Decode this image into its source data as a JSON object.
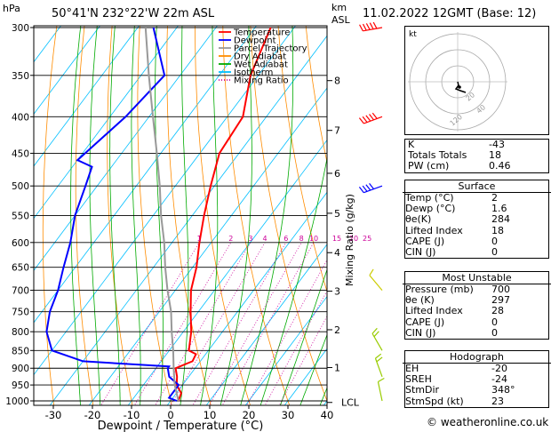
{
  "header": {
    "pressure_unit": "hPa",
    "location": "50°41'N  232°22'W  22m  ASL",
    "height_unit_km": "km",
    "height_unit_asl": "ASL",
    "date": "11.02.2022  12GMT  (Base: 12)"
  },
  "legend": [
    {
      "label": "Temperature",
      "color": "#ff0000",
      "style": "solid"
    },
    {
      "label": "Dewpoint",
      "color": "#0000ff",
      "style": "solid"
    },
    {
      "label": "Parcel Trajectory",
      "color": "#999999",
      "style": "solid"
    },
    {
      "label": "Dry Adiabat",
      "color": "#ff8c00",
      "style": "solid"
    },
    {
      "label": "Wet Adiabat",
      "color": "#00aa00",
      "style": "solid"
    },
    {
      "label": "Isotherm",
      "color": "#00bfff",
      "style": "solid"
    },
    {
      "label": "Mixing Ratio",
      "color": "#cc0099",
      "style": "dotted"
    }
  ],
  "chart_data": {
    "type": "line",
    "title": "",
    "xlabel": "Dewpoint / Temperature (°C)",
    "ylabel": "hPa",
    "right_ylabel": "Mixing Ratio (g/kg)",
    "xlim": [
      -35,
      40
    ],
    "ylim": [
      1000,
      300
    ],
    "x_ticks": [
      -30,
      -20,
      -10,
      0,
      10,
      20,
      30,
      40
    ],
    "pressure_levels": [
      300,
      350,
      400,
      450,
      500,
      550,
      600,
      650,
      700,
      750,
      800,
      850,
      900,
      950,
      1000
    ],
    "km_ticks": [
      {
        "label": "8",
        "p": 356
      },
      {
        "label": "7",
        "p": 418
      },
      {
        "label": "6",
        "p": 480
      },
      {
        "label": "5",
        "p": 546
      },
      {
        "label": "4",
        "p": 620
      },
      {
        "label": "3",
        "p": 702
      },
      {
        "label": "2",
        "p": 795
      },
      {
        "label": "1",
        "p": 898
      },
      {
        "label": "LCL",
        "p": 1005
      }
    ],
    "mixing_ratio_labels": [
      "1",
      "2",
      "3",
      "4",
      "6",
      "8",
      "10",
      "15",
      "20",
      "25"
    ],
    "mixing_ratio_values": [
      1,
      2,
      3,
      4,
      6,
      8,
      10,
      15,
      20,
      25
    ],
    "series": [
      {
        "name": "Temperature",
        "color": "#ff0000",
        "points": [
          [
            2,
            1000
          ],
          [
            1.2,
            975
          ],
          [
            -1.5,
            950
          ],
          [
            -3,
            925
          ],
          [
            -5,
            900
          ],
          [
            -2,
            880
          ],
          [
            -2.5,
            860
          ],
          [
            -5,
            850
          ],
          [
            -8,
            800
          ],
          [
            -12,
            750
          ],
          [
            -16,
            700
          ],
          [
            -19,
            650
          ],
          [
            -23,
            600
          ],
          [
            -27,
            550
          ],
          [
            -31,
            500
          ],
          [
            -35,
            450
          ],
          [
            -36,
            400
          ],
          [
            -42,
            350
          ],
          [
            -46,
            300
          ]
        ]
      },
      {
        "name": "Dewpoint",
        "color": "#0000ff",
        "points": [
          [
            1.6,
            1000
          ],
          [
            -1,
            990
          ],
          [
            -1,
            950
          ],
          [
            -5,
            925
          ],
          [
            -7,
            900
          ],
          [
            -7,
            895
          ],
          [
            -30,
            880
          ],
          [
            -40,
            850
          ],
          [
            -45,
            800
          ],
          [
            -48,
            750
          ],
          [
            -50,
            700
          ],
          [
            -53,
            650
          ],
          [
            -56,
            600
          ],
          [
            -60,
            550
          ],
          [
            -63,
            500
          ],
          [
            -65,
            470
          ],
          [
            -70,
            460
          ],
          [
            -66,
            400
          ],
          [
            -64,
            350
          ],
          [
            -76,
            300
          ]
        ]
      },
      {
        "name": "Parcel Trajectory",
        "color": "#999999",
        "points": [
          [
            2,
            1000
          ],
          [
            1.6,
            995
          ],
          [
            -2,
            950
          ],
          [
            -5.5,
            900
          ],
          [
            -9,
            850
          ],
          [
            -13,
            800
          ],
          [
            -17,
            750
          ],
          [
            -22,
            700
          ],
          [
            -27,
            650
          ],
          [
            -32,
            600
          ],
          [
            -38,
            550
          ],
          [
            -44,
            500
          ],
          [
            -51,
            450
          ],
          [
            -59,
            400
          ],
          [
            -68,
            350
          ],
          [
            -78,
            300
          ]
        ]
      }
    ]
  },
  "wind_barbs": [
    {
      "p": 300,
      "dir": 260,
      "speed": 45
    },
    {
      "p": 400,
      "dir": 250,
      "speed": 55
    },
    {
      "p": 500,
      "dir": 250,
      "speed": 35
    },
    {
      "p": 700,
      "dir": 320,
      "speed": 10
    },
    {
      "p": 850,
      "dir": 330,
      "speed": 15
    },
    {
      "p": 925,
      "dir": 340,
      "speed": 15
    },
    {
      "p": 1000,
      "dir": 348,
      "speed": 10
    }
  ],
  "hodograph": {
    "unit_label": "kt",
    "ring_labels": [
      "20",
      "40"
    ],
    "ring_label_pre": "120"
  },
  "indices": {
    "K": {
      "label": "K",
      "value": "-43"
    },
    "TT": {
      "label": "Totals Totals",
      "value": "18"
    },
    "PW": {
      "label": "PW (cm)",
      "value": "0.46"
    }
  },
  "surface": {
    "title": "Surface",
    "rows": [
      {
        "label": "Temp (°C)",
        "value": "2"
      },
      {
        "label": "Dewp (°C)",
        "value": "1.6"
      },
      {
        "label": "θe(K)",
        "value": "284"
      },
      {
        "label": "Lifted Index",
        "value": "18"
      },
      {
        "label": "CAPE (J)",
        "value": "0"
      },
      {
        "label": "CIN (J)",
        "value": "0"
      }
    ]
  },
  "most_unstable": {
    "title": "Most Unstable",
    "rows": [
      {
        "label": "Pressure (mb)",
        "value": "700"
      },
      {
        "label": "θe (K)",
        "value": "297"
      },
      {
        "label": "Lifted Index",
        "value": "28"
      },
      {
        "label": "CAPE (J)",
        "value": "0"
      },
      {
        "label": "CIN (J)",
        "value": "0"
      }
    ]
  },
  "hodograph_table": {
    "title": "Hodograph",
    "rows": [
      {
        "label": "EH",
        "value": "-20"
      },
      {
        "label": "SREH",
        "value": "-24"
      },
      {
        "label": "StmDir",
        "value": "348°"
      },
      {
        "label": "StmSpd (kt)",
        "value": "23"
      }
    ]
  },
  "credit": "© weatheronline.co.uk"
}
